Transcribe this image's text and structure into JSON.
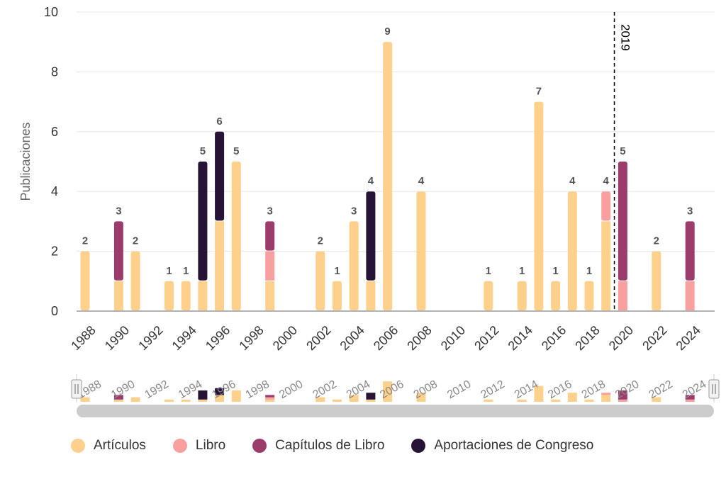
{
  "chart_data": {
    "type": "bar",
    "stacked": true,
    "ylabel": "Publicaciones",
    "ylim": [
      0,
      10
    ],
    "yticks": [
      0,
      2,
      4,
      6,
      8,
      10
    ],
    "x_range": [
      1987,
      2024
    ],
    "x_tick_labels": [
      "1988",
      "1990",
      "1992",
      "1994",
      "1996",
      "1998",
      "2000",
      "2002",
      "2004",
      "2006",
      "2008",
      "2010",
      "2012",
      "2014",
      "2016",
      "2018",
      "2020",
      "2022",
      "2024"
    ],
    "series": [
      {
        "name": "Artículos",
        "color": "#FDD08C"
      },
      {
        "name": "Libro",
        "color": "#F99FA0"
      },
      {
        "name": "Capítulos de Libro",
        "color": "#9C3C6C"
      },
      {
        "name": "Aportaciones de Congreso",
        "color": "#261336"
      }
    ],
    "data": [
      {
        "year": 1988,
        "values": [
          2,
          0,
          0,
          0
        ],
        "total": "2"
      },
      {
        "year": 1990,
        "values": [
          1,
          0,
          2,
          0
        ],
        "total": "3"
      },
      {
        "year": 1991,
        "values": [
          2,
          0,
          0,
          0
        ],
        "total": "2"
      },
      {
        "year": 1993,
        "values": [
          1,
          0,
          0,
          0
        ],
        "total": "1"
      },
      {
        "year": 1994,
        "values": [
          1,
          0,
          0,
          0
        ],
        "total": "1"
      },
      {
        "year": 1995,
        "values": [
          1,
          0,
          0,
          4
        ],
        "total": "5"
      },
      {
        "year": 1996,
        "values": [
          3,
          0,
          0,
          3
        ],
        "total": "6"
      },
      {
        "year": 1997,
        "values": [
          5,
          0,
          0,
          0
        ],
        "total": "5"
      },
      {
        "year": 1999,
        "values": [
          1,
          1,
          1,
          0
        ],
        "total": "3"
      },
      {
        "year": 2002,
        "values": [
          2,
          0,
          0,
          0
        ],
        "total": "2"
      },
      {
        "year": 2003,
        "values": [
          1,
          0,
          0,
          0
        ],
        "total": "1"
      },
      {
        "year": 2004,
        "values": [
          3,
          0,
          0,
          0
        ],
        "total": "3"
      },
      {
        "year": 2005,
        "values": [
          1,
          0,
          0,
          3
        ],
        "total": "4"
      },
      {
        "year": 2006,
        "values": [
          9,
          0,
          0,
          0
        ],
        "total": "9"
      },
      {
        "year": 2008,
        "values": [
          4,
          0,
          0,
          0
        ],
        "total": "4"
      },
      {
        "year": 2012,
        "values": [
          1,
          0,
          0,
          0
        ],
        "total": "1"
      },
      {
        "year": 2014,
        "values": [
          1,
          0,
          0,
          0
        ],
        "total": "1"
      },
      {
        "year": 2015,
        "values": [
          7,
          0,
          0,
          0
        ],
        "total": "7"
      },
      {
        "year": 2016,
        "values": [
          1,
          0,
          0,
          0
        ],
        "total": "1"
      },
      {
        "year": 2017,
        "values": [
          4,
          0,
          0,
          0
        ],
        "total": "4"
      },
      {
        "year": 2018,
        "values": [
          1,
          0,
          0,
          0
        ],
        "total": "1"
      },
      {
        "year": 2019,
        "values": [
          3,
          1,
          0,
          0
        ],
        "total": "4"
      },
      {
        "year": 2020,
        "values": [
          0,
          1,
          4,
          0
        ],
        "total": "5"
      },
      {
        "year": 2022,
        "values": [
          2,
          0,
          0,
          0
        ],
        "total": "2"
      },
      {
        "year": 2024,
        "values": [
          0,
          1,
          2,
          0
        ],
        "total": "3"
      }
    ],
    "annotations": [
      {
        "type": "vertical-line",
        "x": 2019.5,
        "label": "2019"
      }
    ]
  },
  "navigator": {
    "tick_labels": [
      "1988",
      "1990",
      "1992",
      "1994",
      "1996",
      "1998",
      "2000",
      "2002",
      "2004",
      "2006",
      "2008",
      "2010",
      "2012",
      "2014",
      "2016",
      "2018",
      "2020",
      "2022",
      "2024"
    ]
  }
}
